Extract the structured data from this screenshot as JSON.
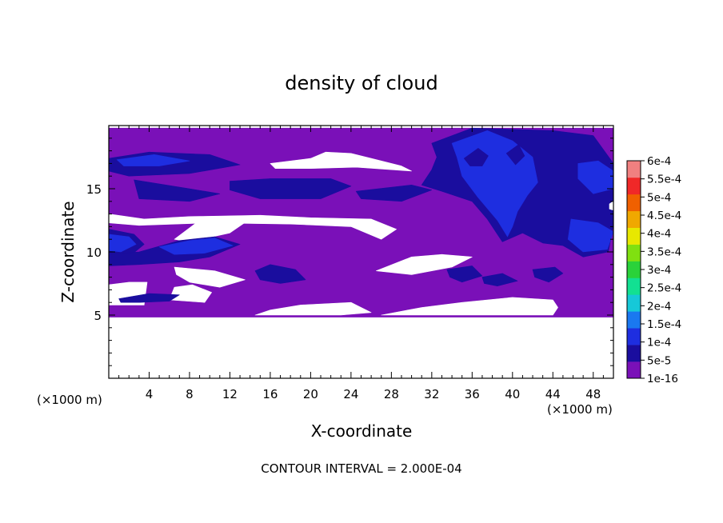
{
  "chart_data": {
    "type": "heatmap",
    "title": "density of cloud",
    "xlabel": "X-coordinate",
    "ylabel": "Z-coordinate",
    "x_unit_left": "(×1000 m)",
    "x_unit_right": "(×1000 m)",
    "xlim": [
      0,
      50
    ],
    "ylim": [
      0,
      20
    ],
    "x_ticks": [
      4,
      8,
      12,
      16,
      20,
      24,
      28,
      32,
      36,
      40,
      44,
      48
    ],
    "y_ticks": [
      5,
      10,
      15
    ],
    "footer": "CONTOUR INTERVAL = 2.000E-04",
    "colorbar": {
      "labels": [
        "1e-16",
        "5e-5",
        "1e-4",
        "1.5e-4",
        "2e-4",
        "2.5e-4",
        "3e-4",
        "3.5e-4",
        "4e-4",
        "4.5e-4",
        "5e-4",
        "5.5e-4",
        "6e-4"
      ],
      "colors": [
        "#7a10b8",
        "#1a0d9e",
        "#1e2ee0",
        "#1a78f0",
        "#16c8d8",
        "#12e092",
        "#2ad23a",
        "#80e010",
        "#e8e800",
        "#f0a800",
        "#f06000",
        "#f02828",
        "#f08080"
      ]
    },
    "no_data_color": "#ffffff",
    "regions": [
      {
        "level": 0,
        "polygon": [
          [
            0,
            4.8
          ],
          [
            50,
            4.8
          ],
          [
            50,
            19.8
          ],
          [
            0,
            19.8
          ]
        ]
      },
      {
        "level": -1,
        "polygon": [
          [
            0,
            5.8
          ],
          [
            3.5,
            5.8
          ],
          [
            3.8,
            7.6
          ],
          [
            2,
            7.6
          ],
          [
            0,
            7.4
          ]
        ]
      },
      {
        "level": -1,
        "polygon": [
          [
            6,
            6.2
          ],
          [
            9.5,
            6.0
          ],
          [
            10.2,
            6.8
          ],
          [
            8.3,
            7.4
          ],
          [
            6.5,
            7.2
          ]
        ]
      },
      {
        "level": -1,
        "polygon": [
          [
            6.5,
            11.0
          ],
          [
            9,
            12.5
          ],
          [
            14,
            12.6
          ],
          [
            12,
            11.5
          ],
          [
            8,
            10.8
          ]
        ]
      },
      {
        "level": -1,
        "polygon": [
          [
            0,
            13.0
          ],
          [
            3.5,
            12.6
          ],
          [
            8,
            12.8
          ],
          [
            15,
            12.9
          ],
          [
            20,
            12.7
          ],
          [
            26,
            12.6
          ],
          [
            28.5,
            11.8
          ],
          [
            27,
            11.0
          ],
          [
            24,
            12.0
          ],
          [
            18,
            12.2
          ],
          [
            10,
            12.3
          ],
          [
            3,
            12.1
          ],
          [
            0,
            12.3
          ]
        ]
      },
      {
        "level": -1,
        "polygon": [
          [
            6.5,
            8.8
          ],
          [
            10.5,
            8.5
          ],
          [
            13.5,
            7.8
          ],
          [
            11,
            7.2
          ],
          [
            8,
            7.6
          ],
          [
            6.7,
            8.2
          ]
        ]
      },
      {
        "level": -1,
        "polygon": [
          [
            14.5,
            5.0
          ],
          [
            16,
            5.4
          ],
          [
            19,
            5.8
          ],
          [
            24,
            6.0
          ],
          [
            26,
            5.2
          ],
          [
            23,
            5.0
          ]
        ]
      },
      {
        "level": -1,
        "polygon": [
          [
            27,
            5.0
          ],
          [
            31,
            5.6
          ],
          [
            35,
            6.0
          ],
          [
            40,
            6.4
          ],
          [
            44,
            6.2
          ],
          [
            44.5,
            5.6
          ],
          [
            44,
            5.0
          ]
        ]
      },
      {
        "level": -1,
        "polygon": [
          [
            26.5,
            8.5
          ],
          [
            30,
            9.6
          ],
          [
            33,
            9.8
          ],
          [
            36,
            9.6
          ],
          [
            34,
            8.8
          ],
          [
            30,
            8.2
          ]
        ]
      },
      {
        "level": -1,
        "polygon": [
          [
            16,
            17.0
          ],
          [
            20,
            17.4
          ],
          [
            21.5,
            17.9
          ],
          [
            24,
            17.8
          ],
          [
            26,
            17.4
          ],
          [
            29,
            16.8
          ],
          [
            30,
            16.4
          ],
          [
            24.5,
            16.7
          ],
          [
            20,
            16.6
          ],
          [
            16.5,
            16.6
          ]
        ]
      },
      {
        "level": 1,
        "polygon": [
          [
            0,
            17.4
          ],
          [
            4,
            17.9
          ],
          [
            10,
            17.7
          ],
          [
            13,
            16.9
          ],
          [
            8,
            16.2
          ],
          [
            2,
            16.0
          ],
          [
            0,
            16.4
          ]
        ]
      },
      {
        "level": 1,
        "polygon": [
          [
            2.5,
            15.7
          ],
          [
            8,
            15.0
          ],
          [
            11,
            14.6
          ],
          [
            8,
            14.0
          ],
          [
            3,
            14.2
          ]
        ]
      },
      {
        "level": 1,
        "polygon": [
          [
            12,
            15.6
          ],
          [
            16,
            15.8
          ],
          [
            22,
            15.8
          ],
          [
            24,
            15.2
          ],
          [
            21,
            14.2
          ],
          [
            15,
            14.2
          ],
          [
            12,
            14.9
          ]
        ]
      },
      {
        "level": 1,
        "polygon": [
          [
            24.5,
            14.8
          ],
          [
            30,
            15.3
          ],
          [
            32,
            14.9
          ],
          [
            29,
            14.0
          ],
          [
            25,
            14.2
          ]
        ]
      },
      {
        "level": 1,
        "polygon": [
          [
            0,
            11.8
          ],
          [
            2.5,
            11.4
          ],
          [
            3.5,
            10.6
          ],
          [
            2,
            9.6
          ],
          [
            0,
            9.7
          ]
        ]
      },
      {
        "level": 1,
        "polygon": [
          [
            0,
            9.8
          ],
          [
            3,
            10.0
          ],
          [
            7,
            10.9
          ],
          [
            10.5,
            11.2
          ],
          [
            13,
            10.6
          ],
          [
            10,
            9.6
          ],
          [
            7,
            9.2
          ],
          [
            3,
            9.0
          ],
          [
            0,
            8.9
          ]
        ]
      },
      {
        "level": 1,
        "polygon": [
          [
            14.5,
            8.5
          ],
          [
            16,
            9.0
          ],
          [
            18.5,
            8.6
          ],
          [
            19.5,
            7.8
          ],
          [
            17,
            7.5
          ],
          [
            15,
            7.8
          ]
        ]
      },
      {
        "level": 1,
        "polygon": [
          [
            33.5,
            8.6
          ],
          [
            36,
            8.9
          ],
          [
            37,
            8.1
          ],
          [
            35,
            7.6
          ],
          [
            33.8,
            8.0
          ]
        ]
      },
      {
        "level": 1,
        "polygon": [
          [
            37,
            8.0
          ],
          [
            39,
            8.3
          ],
          [
            40.5,
            7.7
          ],
          [
            38.5,
            7.3
          ],
          [
            37.2,
            7.5
          ]
        ]
      },
      {
        "level": 1,
        "polygon": [
          [
            42,
            8.6
          ],
          [
            44.2,
            8.8
          ],
          [
            45,
            8.3
          ],
          [
            43.6,
            7.6
          ],
          [
            42.2,
            8.0
          ]
        ]
      },
      {
        "level": 1,
        "polygon": [
          [
            1,
            6.3
          ],
          [
            4,
            6.7
          ],
          [
            7,
            6.6
          ],
          [
            6,
            6.1
          ],
          [
            3,
            6.0
          ],
          [
            1.2,
            6.0
          ]
        ]
      },
      {
        "level": 1,
        "polygon": [
          [
            32,
            18.6
          ],
          [
            36,
            19.8
          ],
          [
            44,
            19.6
          ],
          [
            48,
            19.2
          ],
          [
            50,
            17.0
          ],
          [
            50,
            12.2
          ],
          [
            49.5,
            10.0
          ],
          [
            47,
            9.6
          ],
          [
            45,
            10.5
          ],
          [
            43,
            10.7
          ],
          [
            41,
            11.5
          ],
          [
            39,
            10.8
          ],
          [
            37.5,
            12.6
          ],
          [
            36,
            14.0
          ],
          [
            33,
            14.8
          ],
          [
            31,
            15.3
          ],
          [
            32,
            16.5
          ],
          [
            32.5,
            17.5
          ]
        ]
      },
      {
        "level": 2,
        "polygon": [
          [
            0.8,
            17.3
          ],
          [
            4.5,
            17.7
          ],
          [
            8,
            17.2
          ],
          [
            5,
            16.8
          ],
          [
            1.5,
            16.8
          ]
        ]
      },
      {
        "level": 2,
        "polygon": [
          [
            5,
            10.4
          ],
          [
            8,
            10.9
          ],
          [
            10.5,
            11.1
          ],
          [
            12.3,
            10.5
          ],
          [
            9.5,
            9.9
          ],
          [
            6.5,
            9.8
          ]
        ]
      },
      {
        "level": 2,
        "polygon": [
          [
            0,
            11.4
          ],
          [
            2,
            11.2
          ],
          [
            2.7,
            10.6
          ],
          [
            1.2,
            10.0
          ],
          [
            0,
            10.1
          ]
        ]
      },
      {
        "level": 2,
        "polygon": [
          [
            34,
            18.6
          ],
          [
            37.5,
            19.6
          ],
          [
            40,
            18.8
          ],
          [
            42,
            17.5
          ],
          [
            42.5,
            15.5
          ],
          [
            41.5,
            14.5
          ],
          [
            40.5,
            13.2
          ],
          [
            40,
            12.0
          ],
          [
            39.5,
            11.2
          ],
          [
            38.5,
            12.5
          ],
          [
            36.5,
            14.4
          ],
          [
            35,
            16.0
          ],
          [
            34.5,
            17.5
          ]
        ]
      },
      {
        "level": 2,
        "polygon": [
          [
            45.8,
            12.6
          ],
          [
            48.5,
            12.3
          ],
          [
            50,
            11.6
          ],
          [
            49.4,
            10.2
          ],
          [
            47,
            10.0
          ],
          [
            45.5,
            11.0
          ]
        ]
      },
      {
        "level": 2,
        "polygon": [
          [
            46.5,
            17.0
          ],
          [
            48.5,
            17.2
          ],
          [
            50,
            16.4
          ],
          [
            50,
            15.0
          ],
          [
            48,
            14.6
          ],
          [
            46.5,
            15.8
          ]
        ]
      },
      {
        "level": 1,
        "polygon": [
          [
            35.2,
            17.4
          ],
          [
            36.6,
            18.2
          ],
          [
            37.6,
            17.6
          ],
          [
            37,
            16.8
          ],
          [
            35.8,
            16.8
          ]
        ]
      },
      {
        "level": 1,
        "polygon": [
          [
            39.4,
            17.8
          ],
          [
            40.6,
            18.5
          ],
          [
            41.2,
            17.6
          ],
          [
            40.3,
            16.9
          ]
        ]
      },
      {
        "level": -1,
        "polygon": [
          [
            49.6,
            13.8
          ],
          [
            50,
            14.0
          ],
          [
            50,
            13.3
          ],
          [
            49.6,
            13.4
          ]
        ]
      },
      {
        "level": -1,
        "polygon": [
          [
            0,
            0
          ],
          [
            50,
            0
          ],
          [
            50,
            4.8
          ],
          [
            0,
            4.8
          ]
        ]
      }
    ]
  }
}
